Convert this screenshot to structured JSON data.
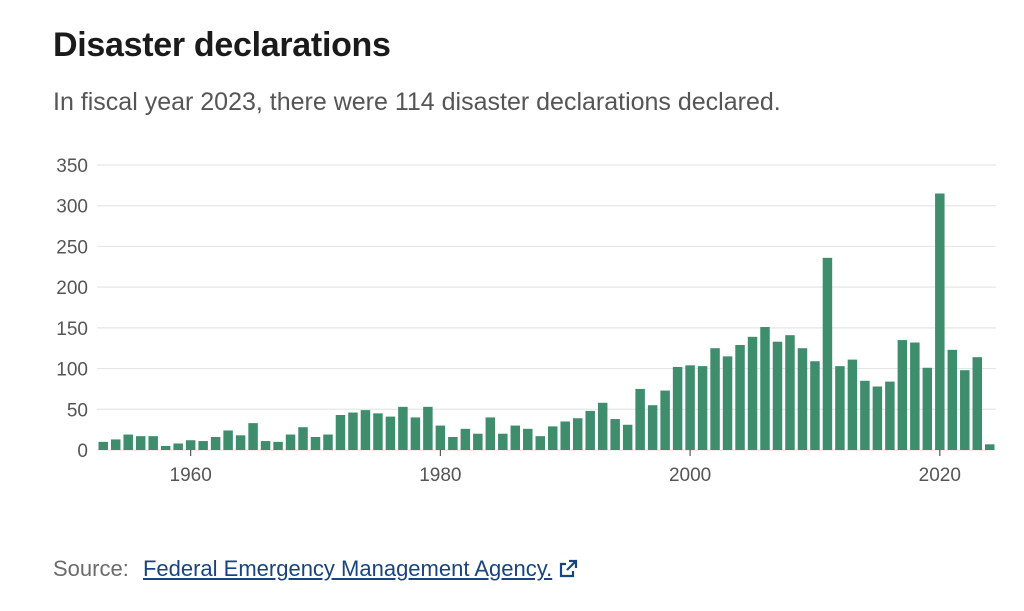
{
  "title": "Disaster declarations",
  "subtitle": "In fiscal year 2023, there were 114 disaster declarations declared.",
  "source": {
    "label": "Source:",
    "link_text": "Federal Emergency Management Agency.",
    "icon": "external-link-icon"
  },
  "colors": {
    "bar": "#3e8e6e",
    "grid": "#e6e6e6",
    "axis": "#555555",
    "link": "#1a4480"
  },
  "chart_data": {
    "type": "bar",
    "title": "Disaster declarations",
    "xlabel": "",
    "ylabel": "",
    "ylim": [
      0,
      350
    ],
    "yticks": [
      0,
      50,
      100,
      150,
      200,
      250,
      300,
      350
    ],
    "xticks": [
      1960,
      1980,
      2000,
      2020
    ],
    "grid": true,
    "categories": [
      1953,
      1954,
      1955,
      1956,
      1957,
      1958,
      1959,
      1960,
      1961,
      1962,
      1963,
      1964,
      1965,
      1966,
      1967,
      1968,
      1969,
      1970,
      1971,
      1972,
      1973,
      1974,
      1975,
      1976,
      1977,
      1978,
      1979,
      1980,
      1981,
      1982,
      1983,
      1984,
      1985,
      1986,
      1987,
      1988,
      1989,
      1990,
      1991,
      1992,
      1993,
      1994,
      1995,
      1996,
      1997,
      1998,
      1999,
      2000,
      2001,
      2002,
      2003,
      2004,
      2005,
      2006,
      2007,
      2008,
      2009,
      2010,
      2011,
      2012,
      2013,
      2014,
      2015,
      2016,
      2017,
      2018,
      2019,
      2020,
      2021,
      2022,
      2023,
      2024
    ],
    "values": [
      10,
      13,
      19,
      17,
      17,
      5,
      8,
      12,
      11,
      16,
      24,
      18,
      33,
      11,
      10,
      19,
      28,
      16,
      19,
      43,
      46,
      49,
      45,
      41,
      53,
      40,
      53,
      30,
      16,
      26,
      20,
      40,
      20,
      30,
      26,
      17,
      29,
      35,
      39,
      48,
      58,
      38,
      31,
      75,
      55,
      73,
      102,
      104,
      103,
      125,
      115,
      129,
      139,
      151,
      133,
      141,
      125,
      109,
      236,
      103,
      111,
      85,
      78,
      84,
      135,
      132,
      101,
      315,
      123,
      98,
      114,
      7
    ]
  }
}
